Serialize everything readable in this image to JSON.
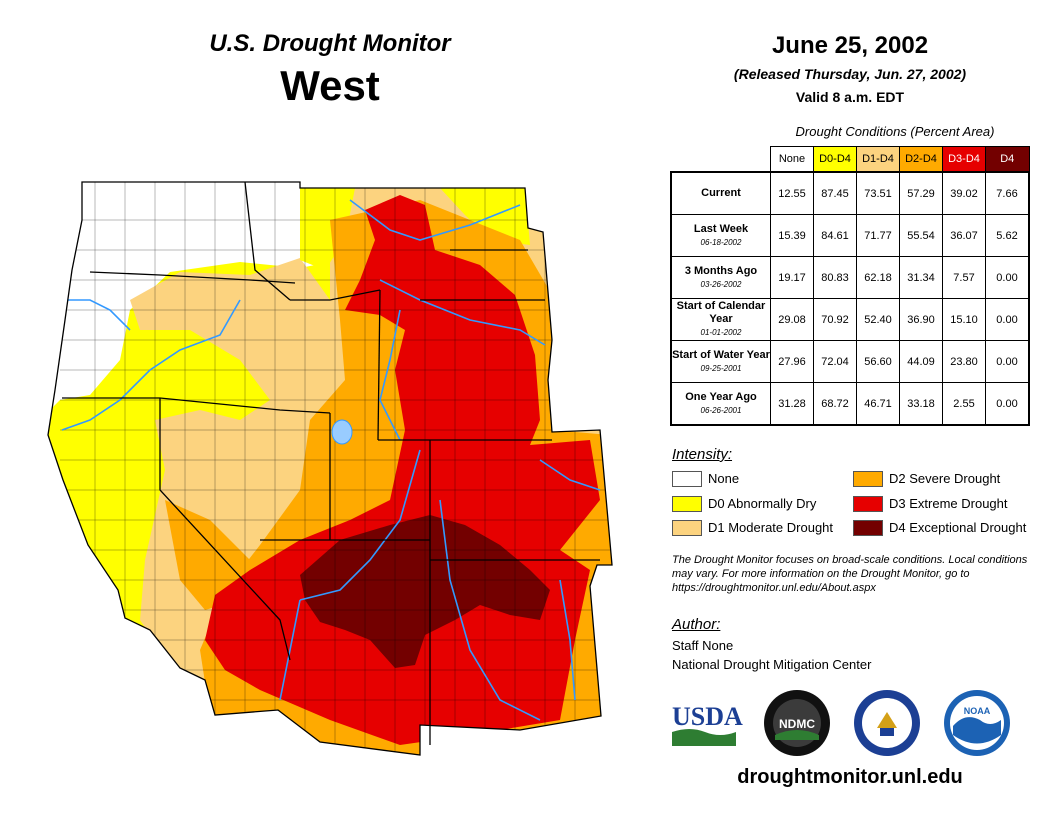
{
  "header": {
    "product": "U.S. Drought Monitor",
    "region": "West",
    "date": "June 25, 2002",
    "released": "(Released Thursday, Jun. 27, 2002)",
    "valid": "Valid 8 a.m. EDT"
  },
  "table": {
    "caption": "Drought Conditions (Percent Area)",
    "columns": [
      "None",
      "D0-D4",
      "D1-D4",
      "D2-D4",
      "D3-D4",
      "D4"
    ],
    "column_colors": [
      "#ffffff",
      "#ffff00",
      "#fcd37f",
      "#ffaa00",
      "#e60000",
      "#730000"
    ],
    "rows": [
      {
        "label": "Current",
        "sub": "",
        "values": [
          "12.55",
          "87.45",
          "73.51",
          "57.29",
          "39.02",
          "7.66"
        ]
      },
      {
        "label": "Last Week",
        "sub": "06-18-2002",
        "values": [
          "15.39",
          "84.61",
          "71.77",
          "55.54",
          "36.07",
          "5.62"
        ]
      },
      {
        "label": "3 Months Ago",
        "sub": "03-26-2002",
        "values": [
          "19.17",
          "80.83",
          "62.18",
          "31.34",
          "7.57",
          "0.00"
        ]
      },
      {
        "label": "Start of Calendar Year",
        "sub": "01-01-2002",
        "values": [
          "29.08",
          "70.92",
          "52.40",
          "36.90",
          "15.10",
          "0.00"
        ]
      },
      {
        "label": "Start of Water Year",
        "sub": "09-25-2001",
        "values": [
          "27.96",
          "72.04",
          "56.60",
          "44.09",
          "23.80",
          "0.00"
        ]
      },
      {
        "label": "One Year Ago",
        "sub": "06-26-2001",
        "values": [
          "31.28",
          "68.72",
          "46.71",
          "33.18",
          "2.55",
          "0.00"
        ]
      }
    ]
  },
  "legend": {
    "title": "Intensity:",
    "items": [
      {
        "label": "None",
        "color": "#ffffff"
      },
      {
        "label": "D0 Abnormally Dry",
        "color": "#ffff00"
      },
      {
        "label": "D1 Moderate Drought",
        "color": "#fcd37f"
      },
      {
        "label": "D2 Severe Drought",
        "color": "#ffaa00"
      },
      {
        "label": "D3 Extreme Drought",
        "color": "#e60000"
      },
      {
        "label": "D4 Exceptional Drought",
        "color": "#730000"
      }
    ]
  },
  "note": "The Drought Monitor focuses on broad-scale conditions. Local conditions may vary. For more information on the Drought Monitor, go to https://droughtmonitor.unl.edu/About.aspx",
  "author": {
    "title": "Author:",
    "name": "Staff None",
    "org": "National Drought Mitigation Center"
  },
  "logos": {
    "usda": "USDA",
    "ndmc": "NDMC",
    "noaa": "NOAA"
  },
  "url": "droughtmonitor.unl.edu",
  "colors": {
    "none": "#ffffff",
    "d0": "#ffff00",
    "d1": "#fcd37f",
    "d2": "#ffaa00",
    "d3": "#e60000",
    "d4": "#730000",
    "river": "#3399ff",
    "lake": "#99ccff",
    "border": "#000000"
  }
}
